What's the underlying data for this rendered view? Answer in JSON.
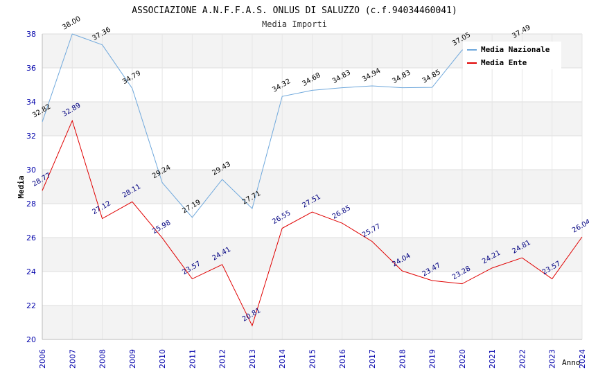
{
  "chart_data": {
    "type": "line",
    "title": "ASSOCIAZIONE A.N.F.F.A.S. ONLUS DI SALUZZO (c.f.94034460041)",
    "subtitle": "Media Importi",
    "xlabel": "Anno",
    "ylabel": "Media",
    "ylim": [
      20,
      38
    ],
    "yticks": [
      "20",
      "22",
      "24",
      "26",
      "28",
      "30",
      "32",
      "34",
      "36",
      "38"
    ],
    "categories": [
      "2006",
      "2007",
      "2008",
      "2009",
      "2010",
      "2011",
      "2012",
      "2013",
      "2014",
      "2015",
      "2016",
      "2017",
      "2018",
      "2019",
      "2020",
      "2021",
      "2022",
      "2023",
      "2024"
    ],
    "grid": true,
    "legend_position": "top-right",
    "series": [
      {
        "name": "Media Nazionale",
        "color": "#6fa8dc",
        "label_color": "#000000",
        "values": [
          32.82,
          38.0,
          37.36,
          34.79,
          29.24,
          27.19,
          29.43,
          27.71,
          34.32,
          34.68,
          34.83,
          34.94,
          34.83,
          34.85,
          37.05,
          null,
          37.49,
          null,
          null
        ],
        "labels": [
          "32.82",
          "38.00",
          "37.36",
          "34.79",
          "29.24",
          "27.19",
          "29.43",
          "27.71",
          "34.32",
          "34.68",
          "34.83",
          "34.94",
          "34.83",
          "34.85",
          "37.05",
          null,
          "37.49",
          null,
          null
        ]
      },
      {
        "name": "Media Ente",
        "color": "#e00000",
        "label_color": "#000080",
        "values": [
          28.77,
          32.89,
          27.12,
          28.11,
          25.98,
          23.57,
          24.41,
          20.81,
          26.55,
          27.51,
          26.85,
          25.77,
          24.04,
          23.47,
          23.28,
          24.21,
          24.81,
          23.57,
          26.04
        ],
        "labels": [
          "28.77",
          "32.89",
          "27.12",
          "28.11",
          "25.98",
          "23.57",
          "24.41",
          "20.81",
          "26.55",
          "27.51",
          "26.85",
          "25.77",
          "24.04",
          "23.47",
          "23.28",
          "24.21",
          "24.81",
          "23.57",
          "26.04"
        ]
      }
    ]
  }
}
